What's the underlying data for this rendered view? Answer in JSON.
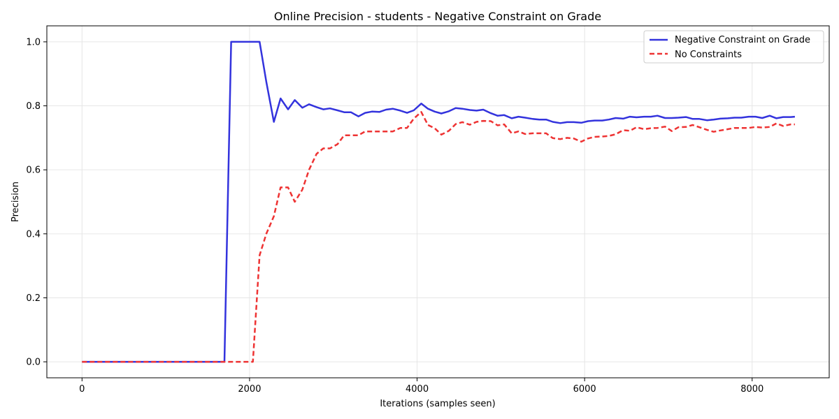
{
  "chart_data": {
    "type": "line",
    "title": "Online Precision - students - Negative Constraint on Grade",
    "xlabel": "Iterations (samples seen)",
    "ylabel": "Precision",
    "xlim": [
      -420,
      8920
    ],
    "ylim": [
      -0.05,
      1.05
    ],
    "x_ticks": [
      0,
      2000,
      4000,
      6000,
      8000
    ],
    "y_ticks": [
      0.0,
      0.2,
      0.4,
      0.6,
      0.8,
      1.0
    ],
    "x_tick_labels": [
      "0",
      "2000",
      "4000",
      "6000",
      "8000"
    ],
    "y_tick_labels": [
      "0.0",
      "0.2",
      "0.4",
      "0.6",
      "0.8",
      "1.0"
    ],
    "grid": true,
    "legend_position": "top-right",
    "series": [
      {
        "name": "Negative Constraint on Grade",
        "color": "#3333dd",
        "style": "solid",
        "x": [
          0,
          100,
          200,
          300,
          400,
          500,
          600,
          700,
          800,
          900,
          1000,
          1100,
          1200,
          1300,
          1400,
          1500,
          1600,
          1700,
          1780,
          1880,
          1960,
          2040,
          2120,
          2200,
          2290,
          2370,
          2460,
          2540,
          2630,
          2710,
          2800,
          2880,
          2960,
          3050,
          3130,
          3210,
          3300,
          3380,
          3460,
          3550,
          3630,
          3710,
          3800,
          3880,
          3960,
          4050,
          4130,
          4210,
          4290,
          4380,
          4460,
          4540,
          4630,
          4710,
          4790,
          4880,
          4960,
          5040,
          5130,
          5210,
          5290,
          5380,
          5460,
          5540,
          5620,
          5710,
          5790,
          5870,
          5960,
          6040,
          6120,
          6210,
          6290,
          6370,
          6460,
          6540,
          6620,
          6710,
          6790,
          6870,
          6960,
          7040,
          7120,
          7210,
          7290,
          7370,
          7460,
          7540,
          7620,
          7710,
          7790,
          7870,
          7960,
          8040,
          8120,
          8210,
          8290,
          8370,
          8460,
          8510
        ],
        "y": [
          0,
          0,
          0,
          0,
          0,
          0,
          0,
          0,
          0,
          0,
          0,
          0,
          0,
          0,
          0,
          0,
          0,
          0,
          1.0,
          1.0,
          1.0,
          1.0,
          1.0,
          0.875,
          0.75,
          0.823,
          0.789,
          0.818,
          0.794,
          0.805,
          0.796,
          0.789,
          0.792,
          0.786,
          0.78,
          0.78,
          0.767,
          0.778,
          0.782,
          0.781,
          0.788,
          0.791,
          0.785,
          0.778,
          0.786,
          0.807,
          0.791,
          0.782,
          0.776,
          0.783,
          0.793,
          0.791,
          0.787,
          0.785,
          0.788,
          0.777,
          0.769,
          0.771,
          0.761,
          0.766,
          0.763,
          0.759,
          0.757,
          0.757,
          0.75,
          0.746,
          0.749,
          0.749,
          0.747,
          0.752,
          0.754,
          0.754,
          0.757,
          0.762,
          0.76,
          0.766,
          0.764,
          0.766,
          0.766,
          0.769,
          0.762,
          0.762,
          0.763,
          0.765,
          0.759,
          0.759,
          0.755,
          0.757,
          0.76,
          0.761,
          0.763,
          0.763,
          0.766,
          0.766,
          0.762,
          0.769,
          0.761,
          0.765,
          0.765,
          0.766
        ]
      },
      {
        "name": "No Constraints",
        "color": "#ee3333",
        "style": "dashed",
        "x": [
          0,
          100,
          200,
          300,
          400,
          500,
          600,
          700,
          800,
          900,
          1000,
          1100,
          1200,
          1300,
          1400,
          1500,
          1600,
          1700,
          1800,
          1900,
          2000,
          2040,
          2120,
          2200,
          2290,
          2370,
          2460,
          2540,
          2630,
          2710,
          2800,
          2880,
          2960,
          3050,
          3130,
          3210,
          3300,
          3380,
          3460,
          3550,
          3630,
          3710,
          3800,
          3880,
          3960,
          4050,
          4130,
          4210,
          4290,
          4380,
          4460,
          4540,
          4630,
          4710,
          4790,
          4880,
          4960,
          5040,
          5130,
          5210,
          5290,
          5380,
          5460,
          5540,
          5620,
          5710,
          5790,
          5870,
          5960,
          6040,
          6120,
          6210,
          6290,
          6370,
          6460,
          6540,
          6620,
          6710,
          6790,
          6870,
          6960,
          7040,
          7120,
          7210,
          7290,
          7370,
          7460,
          7540,
          7620,
          7710,
          7790,
          7870,
          7960,
          8040,
          8120,
          8210,
          8290,
          8370,
          8460,
          8510
        ],
        "y": [
          0,
          0,
          0,
          0,
          0,
          0,
          0,
          0,
          0,
          0,
          0,
          0,
          0,
          0,
          0,
          0,
          0,
          0,
          0,
          0,
          0,
          0,
          0.333,
          0.4,
          0.455,
          0.545,
          0.545,
          0.5,
          0.538,
          0.6,
          0.65,
          0.667,
          0.667,
          0.68,
          0.708,
          0.708,
          0.708,
          0.72,
          0.72,
          0.72,
          0.72,
          0.72,
          0.731,
          0.731,
          0.76,
          0.781,
          0.74,
          0.73,
          0.71,
          0.722,
          0.743,
          0.749,
          0.741,
          0.75,
          0.753,
          0.752,
          0.739,
          0.742,
          0.714,
          0.72,
          0.712,
          0.714,
          0.714,
          0.714,
          0.699,
          0.696,
          0.7,
          0.698,
          0.688,
          0.698,
          0.703,
          0.704,
          0.706,
          0.711,
          0.724,
          0.722,
          0.733,
          0.727,
          0.73,
          0.731,
          0.735,
          0.721,
          0.733,
          0.734,
          0.74,
          0.733,
          0.725,
          0.719,
          0.723,
          0.727,
          0.731,
          0.731,
          0.731,
          0.734,
          0.732,
          0.734,
          0.745,
          0.737,
          0.742,
          0.742
        ]
      }
    ]
  }
}
